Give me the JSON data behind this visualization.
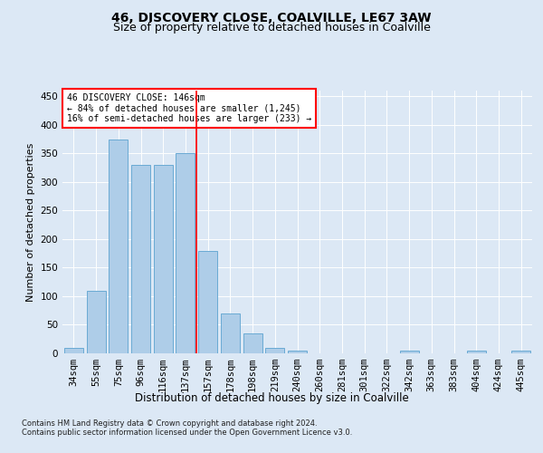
{
  "title": "46, DISCOVERY CLOSE, COALVILLE, LE67 3AW",
  "subtitle": "Size of property relative to detached houses in Coalville",
  "xlabel": "Distribution of detached houses by size in Coalville",
  "ylabel": "Number of detached properties",
  "categories": [
    "34sqm",
    "55sqm",
    "75sqm",
    "96sqm",
    "116sqm",
    "137sqm",
    "157sqm",
    "178sqm",
    "198sqm",
    "219sqm",
    "240sqm",
    "260sqm",
    "281sqm",
    "301sqm",
    "322sqm",
    "342sqm",
    "363sqm",
    "383sqm",
    "404sqm",
    "424sqm",
    "445sqm"
  ],
  "values": [
    10,
    110,
    375,
    330,
    330,
    350,
    180,
    70,
    35,
    10,
    5,
    0,
    0,
    0,
    0,
    5,
    0,
    0,
    5,
    0,
    5
  ],
  "bar_color": "#aecde8",
  "bar_edge_color": "#6aaad4",
  "vline_x": 5.5,
  "vline_color": "red",
  "annotation_text": "46 DISCOVERY CLOSE: 146sqm\n← 84% of detached houses are smaller (1,245)\n16% of semi-detached houses are larger (233) →",
  "annotation_box_color": "red",
  "ylim": [
    0,
    460
  ],
  "yticks": [
    0,
    50,
    100,
    150,
    200,
    250,
    300,
    350,
    400,
    450
  ],
  "footer_text": "Contains HM Land Registry data © Crown copyright and database right 2024.\nContains public sector information licensed under the Open Government Licence v3.0.",
  "bg_color": "#dce8f5",
  "plot_bg_color": "#dce8f5",
  "title_fontsize": 10,
  "subtitle_fontsize": 9,
  "xlabel_fontsize": 8.5,
  "ylabel_fontsize": 8,
  "tick_fontsize": 7.5,
  "annotation_fontsize": 7,
  "footer_fontsize": 6
}
